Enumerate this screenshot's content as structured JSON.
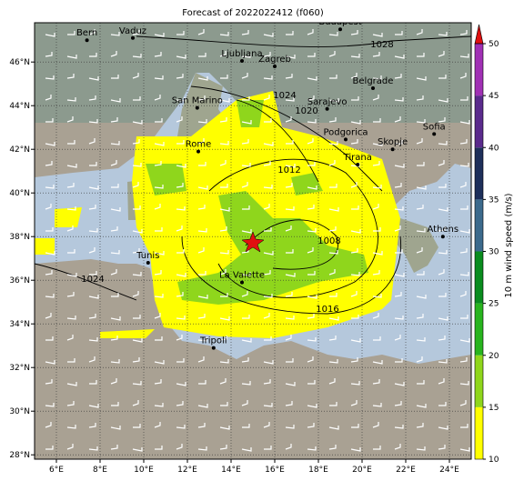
{
  "title": "Forecast of 2022022412 (f060)",
  "lon_ticks": [
    {
      "value": 6,
      "label": "6°E"
    },
    {
      "value": 8,
      "label": "8°E"
    },
    {
      "value": 10,
      "label": "10°E"
    },
    {
      "value": 12,
      "label": "12°E"
    },
    {
      "value": 14,
      "label": "14°E"
    },
    {
      "value": 16,
      "label": "16°E"
    },
    {
      "value": 18,
      "label": "18°E"
    },
    {
      "value": 20,
      "label": "20°E"
    },
    {
      "value": 22,
      "label": "22°E"
    },
    {
      "value": 24,
      "label": "24°E"
    }
  ],
  "lat_ticks": [
    {
      "value": 28,
      "label": "28°N"
    },
    {
      "value": 30,
      "label": "30°N"
    },
    {
      "value": 32,
      "label": "32°N"
    },
    {
      "value": 34,
      "label": "34°N"
    },
    {
      "value": 36,
      "label": "36°N"
    },
    {
      "value": 38,
      "label": "38°N"
    },
    {
      "value": 40,
      "label": "40°N"
    },
    {
      "value": 42,
      "label": "42°N"
    },
    {
      "value": 44,
      "label": "44°N"
    },
    {
      "value": 46,
      "label": "46°N"
    }
  ],
  "cities": [
    {
      "name": "Bern",
      "lon": 7.4,
      "lat": 47.0
    },
    {
      "name": "Vaduz",
      "lon": 9.5,
      "lat": 47.1
    },
    {
      "name": "Budapest",
      "lon": 19.0,
      "lat": 47.5
    },
    {
      "name": "Ljubljana",
      "lon": 14.5,
      "lat": 46.05
    },
    {
      "name": "Zagreb",
      "lon": 16.0,
      "lat": 45.8
    },
    {
      "name": "Belgrade",
      "lon": 20.5,
      "lat": 44.8
    },
    {
      "name": "San Marino",
      "lon": 12.45,
      "lat": 43.9
    },
    {
      "name": "Sarajevo",
      "lon": 18.4,
      "lat": 43.85
    },
    {
      "name": "Sofia",
      "lon": 23.3,
      "lat": 42.7
    },
    {
      "name": "Podgorica",
      "lon": 19.25,
      "lat": 42.45
    },
    {
      "name": "Skopje",
      "lon": 21.4,
      "lat": 42.0
    },
    {
      "name": "Rome",
      "lon": 12.5,
      "lat": 41.9
    },
    {
      "name": "Tirana",
      "lon": 19.8,
      "lat": 41.3
    },
    {
      "name": "Athens",
      "lon": 23.7,
      "lat": 38.0
    },
    {
      "name": "Tunis",
      "lon": 10.2,
      "lat": 36.8
    },
    {
      "name": "La Valette",
      "lon": 14.5,
      "lat": 35.9
    },
    {
      "name": "Tripoli",
      "lon": 13.2,
      "lat": 32.9
    }
  ],
  "isobar_labels": [
    "1028",
    "1024",
    "1020",
    "1012",
    "1008",
    "1016",
    "1024"
  ],
  "colorbar": {
    "label": "10 m wind speed (m/s)",
    "ticks": [
      10,
      15,
      20,
      25,
      30,
      35,
      40,
      45,
      50
    ],
    "colors": [
      "#ffff00",
      "#8fd61c",
      "#28b41e",
      "#0a8c1e",
      "#3c6a8c",
      "#1e2f5a",
      "#5a2a8c",
      "#a030b4"
    ],
    "extend_color": "#e01010"
  }
}
